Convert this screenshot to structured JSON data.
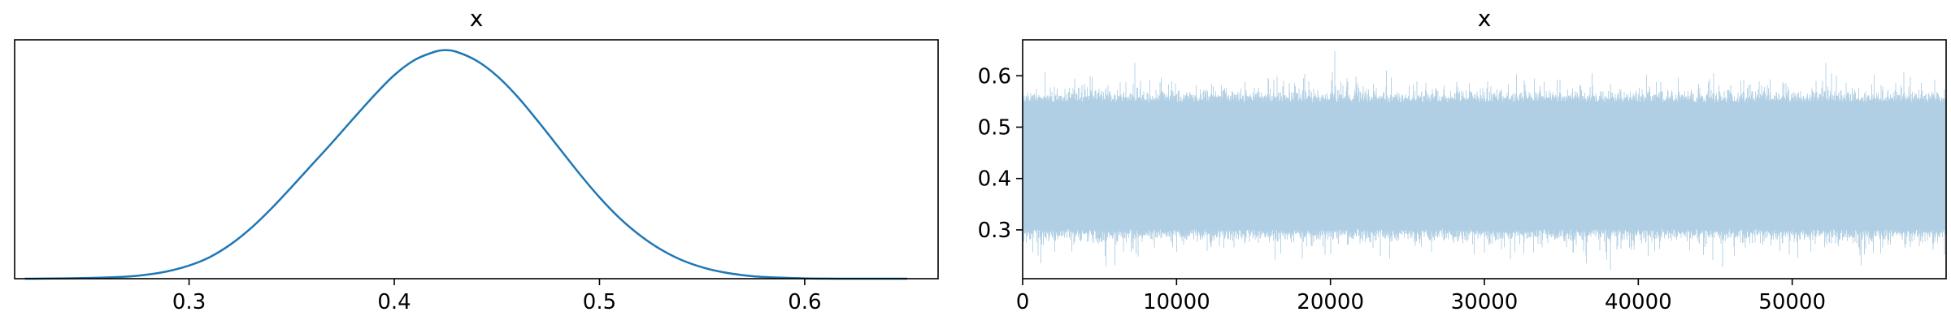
{
  "colors": {
    "kde_line": "#1f77b4",
    "trace_fill": "#b0cfe4",
    "axes": "#000000",
    "background": "#ffffff"
  },
  "chart_data": [
    {
      "type": "line",
      "title": "x",
      "xlabel": "",
      "ylabel": "",
      "xlim": [
        0.215,
        0.665
      ],
      "ylim": [
        0,
        6.9
      ],
      "xticks": [
        0.3,
        0.4,
        0.5,
        0.6
      ],
      "xtick_labels": [
        "0.3",
        "0.4",
        "0.5",
        "0.6"
      ],
      "yticks": [],
      "grid": false,
      "series": [
        {
          "x": [
            0.22,
            0.25,
            0.27,
            0.28,
            0.29,
            0.3,
            0.31,
            0.32,
            0.33,
            0.34,
            0.35,
            0.36,
            0.37,
            0.38,
            0.39,
            0.4,
            0.41,
            0.42,
            0.425,
            0.43,
            0.44,
            0.45,
            0.46,
            0.47,
            0.48,
            0.49,
            0.5,
            0.51,
            0.52,
            0.53,
            0.54,
            0.55,
            0.56,
            0.57,
            0.58,
            0.6,
            0.62,
            0.65
          ],
          "y": [
            0.0,
            0.02,
            0.06,
            0.12,
            0.22,
            0.38,
            0.62,
            0.98,
            1.45,
            2.02,
            2.65,
            3.3,
            3.95,
            4.62,
            5.28,
            5.88,
            6.32,
            6.56,
            6.6,
            6.56,
            6.3,
            5.86,
            5.26,
            4.55,
            3.8,
            3.05,
            2.35,
            1.74,
            1.24,
            0.84,
            0.54,
            0.33,
            0.19,
            0.1,
            0.05,
            0.01,
            0.0,
            0.0
          ]
        }
      ]
    },
    {
      "type": "area",
      "title": "x",
      "xlabel": "",
      "ylabel": "",
      "xlim": [
        0,
        60000
      ],
      "ylim": [
        0.205,
        0.67
      ],
      "xticks": [
        0,
        10000,
        20000,
        30000,
        40000,
        50000
      ],
      "xtick_labels": [
        "0",
        "10000",
        "20000",
        "30000",
        "40000",
        "50000"
      ],
      "yticks": [
        0.3,
        0.4,
        0.5,
        0.6
      ],
      "ytick_labels": [
        "0.3",
        "0.4",
        "0.5",
        "0.6"
      ],
      "grid": false,
      "n_samples": 60000,
      "series": [
        {
          "summary": "MCMC trace, values fluctuate around 0.42",
          "typical_range": [
            0.29,
            0.56
          ],
          "min": 0.22,
          "max": 0.65,
          "spikes": [
            {
              "x": 20300,
              "y": 0.648
            },
            {
              "x": 7300,
              "y": 0.625
            },
            {
              "x": 52200,
              "y": 0.625
            },
            {
              "x": 38200,
              "y": 0.222
            },
            {
              "x": 1200,
              "y": 0.235
            },
            {
              "x": 45500,
              "y": 0.228
            },
            {
              "x": 16400,
              "y": 0.242
            },
            {
              "x": 6000,
              "y": 0.232
            }
          ]
        }
      ]
    }
  ]
}
